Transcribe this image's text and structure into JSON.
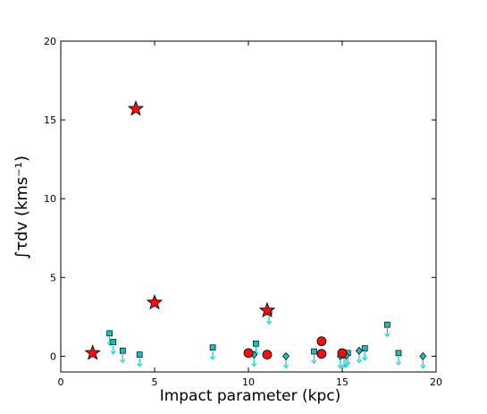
{
  "chart_data": {
    "type": "scatter",
    "xlabel": "Impact parameter (kpc)",
    "ylabel": "∫τdv (kms⁻¹)",
    "xlim": [
      0,
      20
    ],
    "ylim": [
      -1,
      20
    ],
    "xticks": [
      0,
      5,
      10,
      15,
      20
    ],
    "yticks": [
      0,
      5,
      10,
      15,
      20
    ],
    "grid": false,
    "colors": {
      "detection": "#ee1111",
      "limit": "#22bbbb",
      "arrow": "#00cccc"
    },
    "series": [
      {
        "marker": "star",
        "points": [
          {
            "x": 1.7,
            "y": 0.2
          },
          {
            "x": 4.0,
            "y": 15.7
          },
          {
            "x": 5.0,
            "y": 3.4
          },
          {
            "x": 11.0,
            "y": 2.9
          }
        ]
      },
      {
        "marker": "circle",
        "points": [
          {
            "x": 10.0,
            "y": 0.2
          },
          {
            "x": 11.0,
            "y": 0.1
          },
          {
            "x": 13.9,
            "y": 0.95
          },
          {
            "x": 13.9,
            "y": 0.15
          },
          {
            "x": 15.0,
            "y": 0.2
          }
        ]
      },
      {
        "marker": "square",
        "upper_limit": true,
        "points": [
          {
            "x": 2.6,
            "y": 1.45
          },
          {
            "x": 2.8,
            "y": 0.9
          },
          {
            "x": 3.3,
            "y": 0.35
          },
          {
            "x": 4.2,
            "y": 0.1
          },
          {
            "x": 8.1,
            "y": 0.55
          },
          {
            "x": 10.4,
            "y": 0.8
          },
          {
            "x": 11.1,
            "y": 2.8
          },
          {
            "x": 13.5,
            "y": 0.3
          },
          {
            "x": 15.1,
            "y": 0.05
          },
          {
            "x": 15.3,
            "y": 0.2
          },
          {
            "x": 16.2,
            "y": 0.5
          },
          {
            "x": 17.4,
            "y": 2.0
          },
          {
            "x": 18.0,
            "y": 0.2
          }
        ]
      },
      {
        "marker": "diamond",
        "upper_limit": true,
        "points": [
          {
            "x": 10.3,
            "y": 0.1
          },
          {
            "x": 12.0,
            "y": 0.0
          },
          {
            "x": 14.9,
            "y": 0.0
          },
          {
            "x": 15.2,
            "y": 0.05
          },
          {
            "x": 15.9,
            "y": 0.35
          },
          {
            "x": 19.3,
            "y": 0.0
          }
        ]
      }
    ]
  }
}
